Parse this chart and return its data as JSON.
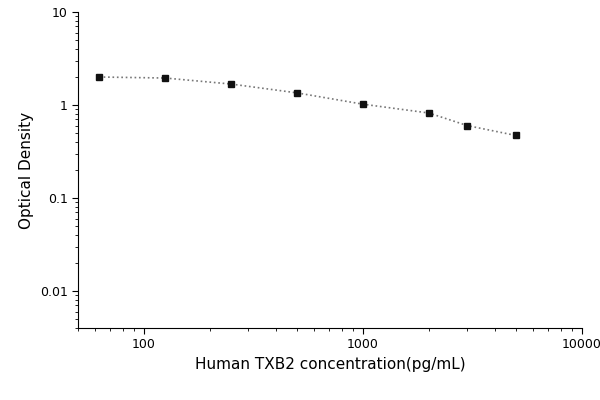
{
  "x": [
    62.5,
    125,
    250,
    500,
    1000,
    2000,
    3000,
    5000
  ],
  "y": [
    2.0,
    1.95,
    1.68,
    1.35,
    1.02,
    0.82,
    0.6,
    0.47
  ],
  "xlabel": "Human TXB2 concentration(pg/mL)",
  "ylabel": "Optical Density",
  "xlim": [
    50,
    10000
  ],
  "ylim": [
    0.004,
    10
  ],
  "line_color": "#777777",
  "marker_color": "#111111",
  "marker": "s",
  "marker_size": 5,
  "line_style": ":",
  "line_width": 1.2,
  "xlabel_fontsize": 11,
  "ylabel_fontsize": 11,
  "tick_fontsize": 9,
  "background_color": "#ffffff",
  "yticks": [
    0.01,
    0.1,
    1,
    10
  ],
  "ytick_labels": [
    "0.01",
    "0.1",
    "1",
    "10"
  ],
  "xticks": [
    100,
    1000,
    10000
  ],
  "xtick_labels": [
    "100",
    "1000",
    "10000"
  ]
}
